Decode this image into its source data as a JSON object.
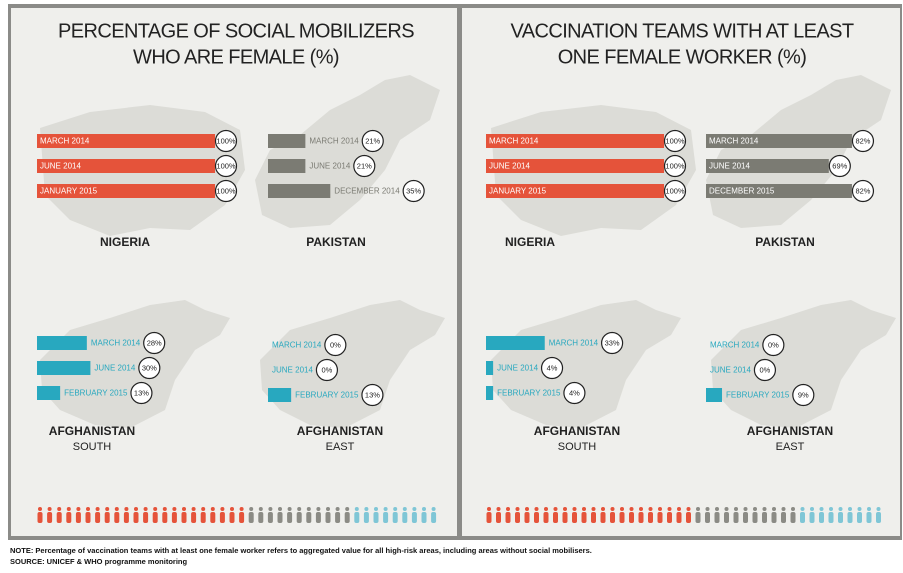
{
  "titles": [
    [
      "PERCENTAGE OF SOCIAL MOBILIZERS",
      "WHO ARE FEMALE (%)"
    ],
    [
      "VACCINATION TEAMS WITH AT LEAST",
      "ONE FEMALE WORKER (%)"
    ]
  ],
  "chart_data": [
    {
      "type": "bar",
      "title": "NIGERIA",
      "categories": [
        "MARCH 2014",
        "JUNE 2014",
        "JANUARY 2015"
      ],
      "values": [
        100,
        100,
        100
      ],
      "value_labels": [
        "100%",
        "100%",
        "100%"
      ],
      "color": "#e5533a",
      "xlim": [
        0,
        100
      ]
    },
    {
      "type": "bar",
      "title": "PAKISTAN",
      "categories": [
        "MARCH 2014",
        "JUNE 2014",
        "DECEMBER 2014"
      ],
      "values": [
        21,
        21,
        35
      ],
      "value_labels": [
        "21%",
        "21%",
        "35%"
      ],
      "color": "#7b7b73",
      "xlim": [
        0,
        100
      ]
    },
    {
      "type": "bar",
      "title": "AFGHANISTAN",
      "subtitle": "SOUTH",
      "categories": [
        "MARCH 2014",
        "JUNE 2014",
        "FEBRUARY 2015"
      ],
      "values": [
        28,
        30,
        13
      ],
      "value_labels": [
        "28%",
        "30%",
        "13%"
      ],
      "color": "#28a8bf",
      "xlim": [
        0,
        100
      ]
    },
    {
      "type": "bar",
      "title": "AFGHANISTAN",
      "subtitle": "EAST",
      "categories": [
        "MARCH 2014",
        "JUNE 2014",
        "FEBRUARY 2015"
      ],
      "values": [
        0,
        0,
        13
      ],
      "value_labels": [
        "0%",
        "0%",
        "13%"
      ],
      "color": "#28a8bf",
      "xlim": [
        0,
        100
      ]
    },
    {
      "type": "bar",
      "title": "NIGERIA",
      "categories": [
        "MARCH 2014",
        "JUNE 2014",
        "JANUARY 2015"
      ],
      "values": [
        100,
        100,
        100
      ],
      "value_labels": [
        "100%",
        "100%",
        "100%"
      ],
      "color": "#e5533a",
      "xlim": [
        0,
        100
      ]
    },
    {
      "type": "bar",
      "title": "PAKISTAN",
      "categories": [
        "MARCH 2014",
        "JUNE 2014",
        "DECEMBER 2015"
      ],
      "values": [
        82,
        69,
        82
      ],
      "value_labels": [
        "82%",
        "69%",
        "82%"
      ],
      "color": "#7b7b73",
      "xlim": [
        0,
        100
      ]
    },
    {
      "type": "bar",
      "title": "AFGHANISTAN",
      "subtitle": "SOUTH",
      "categories": [
        "MARCH 2014",
        "JUNE 2014",
        "FEBRUARY 2015"
      ],
      "values": [
        33,
        4,
        4
      ],
      "value_labels": [
        "33%",
        "4%",
        "4%"
      ],
      "color": "#28a8bf",
      "xlim": [
        0,
        100
      ]
    },
    {
      "type": "bar",
      "title": "AFGHANISTAN",
      "subtitle": "EAST",
      "categories": [
        "MARCH 2014",
        "JUNE 2014",
        "FEBRUARY 2015"
      ],
      "values": [
        0,
        0,
        9
      ],
      "value_labels": [
        "0%",
        "0%",
        "9%"
      ],
      "color": "#28a8bf",
      "xlim": [
        0,
        100
      ]
    }
  ],
  "note": "NOTE: Percentage of vaccination teams with at least one female worker refers to aggregated value for all high-risk areas, including areas without social mobilisers.",
  "source": "SOURCE: UNICEF & WHO programme monitoring"
}
